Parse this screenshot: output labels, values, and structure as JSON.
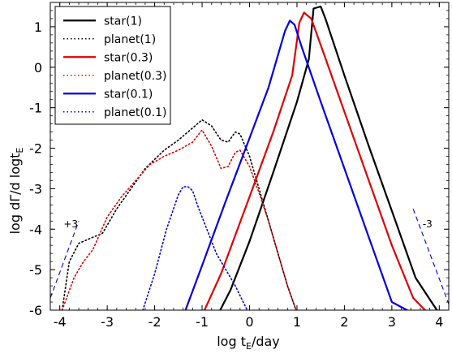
{
  "chart_data": {
    "type": "line",
    "xlabel": "log t",
    "xlabel_sub": "E",
    "xlabel_tail": "/day",
    "ylabel": "log dΓ/d logt",
    "ylabel_sub": "E",
    "xlim": [
      -4.2,
      4.2
    ],
    "ylim": [
      -6,
      1.6
    ],
    "xticks": [
      -4,
      -3,
      -2,
      -1,
      0,
      1,
      2,
      3,
      4
    ],
    "xtick_labels": [
      "-4",
      "-3",
      "-2",
      "-1",
      "0",
      "1",
      "2",
      "3",
      "4"
    ],
    "yticks": [
      -6,
      -5,
      -4,
      -3,
      -2,
      -1,
      0,
      1
    ],
    "ytick_labels": [
      "-6",
      "-5",
      "-4",
      "-3",
      "-2",
      "-1",
      "0",
      "1"
    ],
    "legend_position": "top-left",
    "series": [
      {
        "name": "star(1)",
        "color": "#000000",
        "style": "solid",
        "x": [
          -0.62,
          -0.4,
          0,
          0.5,
          1.0,
          1.25,
          1.35,
          1.5,
          1.6,
          2.0,
          2.5,
          3.0,
          3.5,
          3.95
        ],
        "y": [
          -6,
          -5.5,
          -4.3,
          -2.6,
          -0.85,
          0.2,
          1.45,
          1.5,
          1.2,
          -0.2,
          -1.9,
          -3.55,
          -5.2,
          -6
        ]
      },
      {
        "name": "planet(1)",
        "color": "#000000",
        "style": "dotted",
        "x": [
          -3.95,
          -3.8,
          -3.6,
          -3.3,
          -3.1,
          -2.8,
          -2.5,
          -2.2,
          -1.8,
          -1.5,
          -1.2,
          -1.0,
          -0.8,
          -0.6,
          -0.45,
          -0.3,
          -0.2,
          0.0,
          0.2,
          0.5,
          0.8,
          0.98
        ],
        "y": [
          -6,
          -4.8,
          -4.35,
          -4.2,
          -4.1,
          -3.5,
          -3.0,
          -2.5,
          -2.05,
          -1.8,
          -1.5,
          -1.3,
          -1.45,
          -1.8,
          -1.85,
          -1.6,
          -1.65,
          -2.2,
          -3.0,
          -4.2,
          -5.4,
          -6
        ]
      },
      {
        "name": "star(0.3)",
        "color": "#e00000",
        "style": "solid",
        "x": [
          -0.95,
          -0.6,
          0,
          0.5,
          0.9,
          1.05,
          1.15,
          1.3,
          1.5,
          2.0,
          2.5,
          3.0,
          3.45,
          3.7
        ],
        "y": [
          -6,
          -5.1,
          -3.2,
          -1.6,
          -0.2,
          1.1,
          1.35,
          1.2,
          0.55,
          -1.1,
          -2.75,
          -4.4,
          -5.7,
          -6
        ]
      },
      {
        "name": "planet(0.3)",
        "color": "#e00000",
        "style": "dotted",
        "x": [
          -3.95,
          -3.7,
          -3.5,
          -3.3,
          -3.0,
          -2.7,
          -2.4,
          -2.1,
          -1.8,
          -1.5,
          -1.2,
          -1.0,
          -0.8,
          -0.6,
          -0.45,
          -0.3,
          -0.2,
          0.0,
          0.2,
          0.4,
          0.6,
          0.8,
          0.98
        ],
        "y": [
          -6,
          -5.2,
          -4.8,
          -4.5,
          -3.7,
          -3.2,
          -2.8,
          -2.4,
          -2.2,
          -2.05,
          -1.85,
          -1.55,
          -1.95,
          -2.5,
          -2.45,
          -2.1,
          -2.05,
          -2.45,
          -3.1,
          -3.8,
          -4.6,
          -5.4,
          -6
        ]
      },
      {
        "name": "star(0.1)",
        "color": "#0000e0",
        "style": "solid",
        "x": [
          -1.35,
          -1.0,
          -0.5,
          0,
          0.4,
          0.75,
          0.85,
          0.95,
          1.1,
          1.5,
          2.0,
          2.5,
          3.0,
          3.32
        ],
        "y": [
          -6,
          -4.9,
          -3.3,
          -1.75,
          -0.5,
          0.9,
          1.15,
          1.05,
          0.5,
          -0.85,
          -2.5,
          -4.15,
          -5.8,
          -6
        ]
      },
      {
        "name": "planet(0.1)",
        "color": "#0000e0",
        "style": "dotted",
        "x": [
          -2.25,
          -2.0,
          -1.75,
          -1.5,
          -1.4,
          -1.3,
          -1.2,
          -1.1,
          -0.9,
          -0.7,
          -0.5,
          -0.3,
          -0.05
        ],
        "y": [
          -6,
          -5.1,
          -4.0,
          -3.15,
          -2.95,
          -2.95,
          -3.05,
          -3.4,
          -4.0,
          -4.6,
          -5.0,
          -5.4,
          -6
        ]
      }
    ],
    "annotations": [
      {
        "text": "+3",
        "x": -3.92,
        "y": -3.95
      },
      {
        "text": "-3",
        "x": 3.65,
        "y": -3.95
      }
    ],
    "slope_lines": [
      {
        "label": "+3",
        "color": "#0000e0",
        "x": [
          -4.2,
          -3.6
        ],
        "y": [
          -5.7,
          -3.8
        ]
      },
      {
        "label": "-3",
        "color": "#0000e0",
        "x": [
          3.45,
          4.2
        ],
        "y": [
          -3.5,
          -5.85
        ]
      }
    ]
  }
}
